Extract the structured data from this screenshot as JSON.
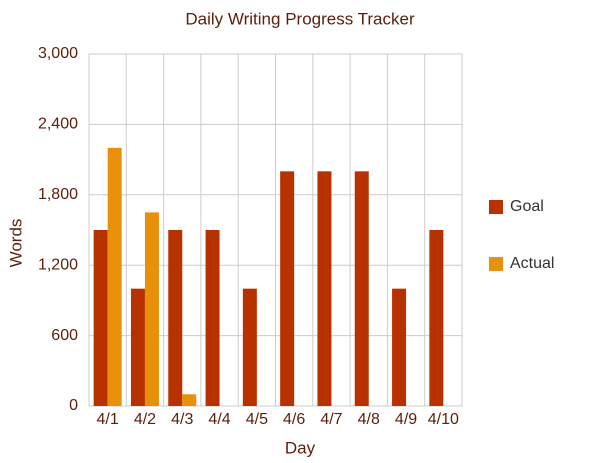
{
  "chart_data": {
    "type": "bar",
    "title": "Daily Writing Progress Tracker",
    "x_label": "Day",
    "y_label": "Words",
    "categories": [
      "4/1",
      "4/2",
      "4/3",
      "4/4",
      "4/5",
      "4/6",
      "4/7",
      "4/8",
      "4/9",
      "4/10"
    ],
    "series": [
      {
        "name": "Goal",
        "color": "#b83200",
        "values": [
          1500,
          1000,
          1500,
          1500,
          1000,
          2000,
          2000,
          2000,
          1000,
          1500
        ]
      },
      {
        "name": "Actual",
        "color": "#e8900a",
        "values": [
          2200,
          1650,
          100,
          null,
          null,
          null,
          null,
          null,
          null,
          null
        ]
      }
    ],
    "ylim": [
      0,
      3000
    ],
    "yticks": [
      0,
      600,
      {
        "value": 1200,
        "label": "1,200"
      },
      {
        "value": 1800,
        "label": "1,800"
      },
      {
        "value": 2400,
        "label": "2,400"
      },
      {
        "value": 3000,
        "label": "3,000"
      }
    ],
    "grid": true,
    "legend": "right"
  }
}
